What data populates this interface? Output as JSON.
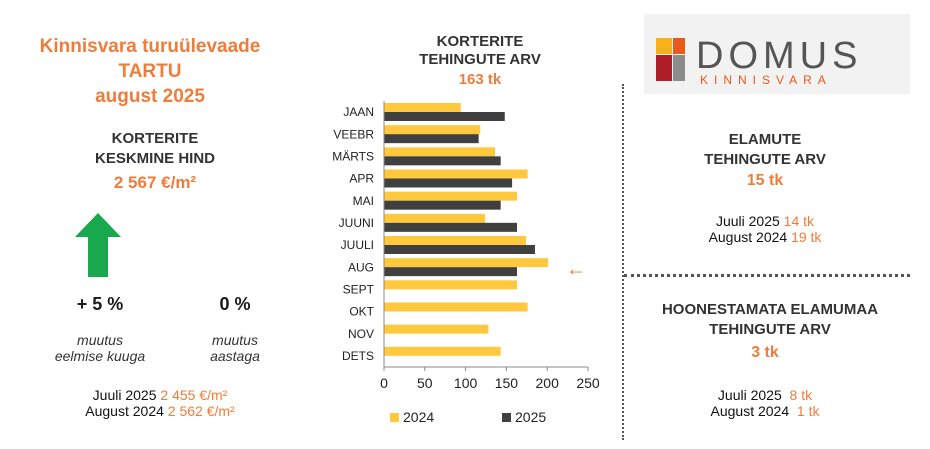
{
  "header": {
    "title_lines": [
      "Kinnisvara turuülevaade",
      "TARTU",
      "august 2025"
    ]
  },
  "avg_price": {
    "heading_lines": [
      "KORTERITE",
      "KESKMINE HIND"
    ],
    "value": "2 567 €/m²",
    "mom_change": "+ 5 %",
    "mom_caption_lines": [
      "muutus",
      "eelmise kuuga"
    ],
    "yoy_change": "0 %",
    "yoy_caption_lines": [
      "muutus",
      "aastaga"
    ],
    "comparisons": [
      {
        "label": "Juuli 2025 ",
        "value": "2 455 €/m²"
      },
      {
        "label": "August 2024 ",
        "value": "2 562 €/m²"
      }
    ],
    "trend_icon": "arrow-up-icon"
  },
  "apartments": {
    "heading_lines": [
      "KORTERITE",
      "TEHINGUTE ARV"
    ],
    "total": "163 tk"
  },
  "chart_data": {
    "type": "bar",
    "orientation": "horizontal",
    "categories": [
      "JAAN",
      "VEEBR",
      "MÄRTS",
      "APR",
      "MAI",
      "JUUNI",
      "JUULI",
      "AUG",
      "SEPT",
      "OKT",
      "NOV",
      "DETS"
    ],
    "series": [
      {
        "name": "2024",
        "color": "#ffc83d",
        "values": [
          94,
          118,
          136,
          176,
          163,
          124,
          174,
          201,
          163,
          176,
          128,
          143
        ]
      },
      {
        "name": "2025",
        "color": "#404040",
        "values": [
          148,
          116,
          143,
          157,
          143,
          163,
          185,
          163,
          null,
          null,
          null,
          null
        ]
      }
    ],
    "xlim": [
      0,
      250
    ],
    "xticks": [
      0,
      50,
      100,
      150,
      200,
      250
    ],
    "grid": false,
    "legend_position": "bottom",
    "highlight_category": "AUG",
    "highlight_marker": "←"
  },
  "houses": {
    "heading_lines": [
      "ELAMUTE",
      "TEHINGUTE ARV"
    ],
    "value": "15 tk",
    "comparisons": [
      {
        "label": "Juuli 2025 ",
        "value": "14 tk"
      },
      {
        "label": "August 2024 ",
        "value": "19 tk"
      }
    ]
  },
  "land": {
    "heading_lines": [
      "HOONESTAMATA ELAMUMAA",
      "TEHINGUTE ARV"
    ],
    "value": "3 tk",
    "comparisons": [
      {
        "label": "Juuli 2025  ",
        "value": "8 tk"
      },
      {
        "label": "August 2024  ",
        "value": "1 tk"
      }
    ]
  },
  "logo": {
    "name": "DOMUS",
    "subtitle": "KINNISVARA",
    "colors": [
      "#f6b11c",
      "#e8591b",
      "#b01e2a",
      "#8c8c8c"
    ]
  },
  "colors": {
    "accent": "#f07c3a",
    "arrow": "#18a84e"
  }
}
